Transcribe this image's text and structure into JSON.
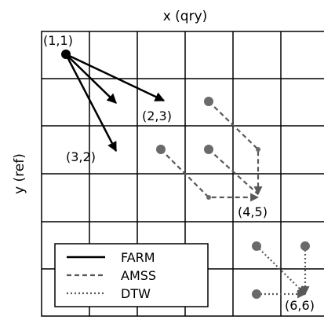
{
  "axes": {
    "x_label": "x (qry)",
    "y_label": "y (ref)"
  },
  "grid": {
    "columns": 6,
    "rows": 6,
    "line_color": "#000000"
  },
  "points": {
    "origin": "(1,1)",
    "p23": "(2,3)",
    "p32": "(3,2)",
    "p45": "(4,5)",
    "p66": "(6,6)"
  },
  "legend": {
    "farm": "FARM",
    "amss": "AMSS",
    "dtw": "DTW"
  },
  "colors": {
    "farm": "#000000",
    "amss": "#595959",
    "dtw": "#595959",
    "node_gray": "#6a6a6a"
  }
}
